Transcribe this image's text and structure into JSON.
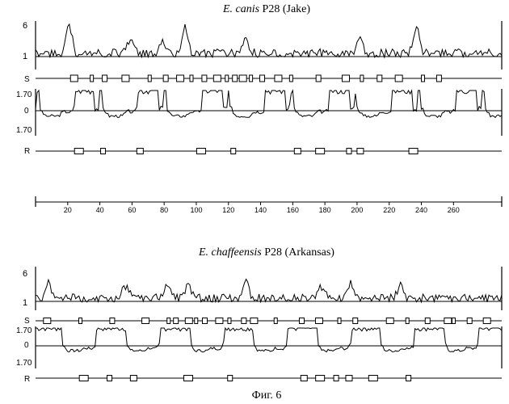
{
  "panels": [
    {
      "title_italic": "E. canis",
      "title_rest": " P28 (Jake)",
      "top_labels": [
        "6",
        "1"
      ],
      "s_label": "S",
      "hydro_labels": [
        "1.70",
        "0",
        "1.70"
      ],
      "r_label": "R"
    },
    {
      "title_italic": "E. chaffeensis",
      "title_rest": " P28 (Arkansas)",
      "top_labels": [
        "6",
        "1"
      ],
      "s_label": "S",
      "hydro_labels": [
        "1.70",
        "0",
        "1.70"
      ],
      "r_label": "R"
    }
  ],
  "axis": {
    "ticks": [
      "20",
      "40",
      "60",
      "80",
      "100",
      "120",
      "140",
      "160",
      "180",
      "200",
      "220",
      "240",
      "260"
    ]
  },
  "caption": "Фиг. 6",
  "track_data": {
    "panel1": {
      "r_boxes": [
        27,
        42,
        65,
        103,
        123,
        163,
        177,
        195,
        202,
        235
      ],
      "s_boxes": [
        24,
        35,
        43,
        56,
        71,
        81,
        90,
        97,
        105,
        113,
        119,
        124,
        129,
        134,
        141,
        151,
        159,
        176,
        193,
        203,
        214,
        226,
        241,
        251
      ],
      "peaks": [
        21,
        59,
        79,
        93,
        131,
        202,
        237
      ]
    },
    "panel2": {
      "r_boxes": [
        30,
        46,
        61,
        95,
        121,
        167,
        177,
        187,
        195,
        210,
        232
      ],
      "s_boxes": [
        8,
        31,
        53,
        76,
        92,
        97,
        106,
        111,
        117,
        127,
        134,
        144,
        151,
        166,
        184,
        196,
        210,
        221,
        245,
        257,
        271,
        285,
        289,
        300,
        312
      ],
      "peaks": [
        8,
        56,
        82,
        95,
        131,
        178,
        196,
        227
      ]
    }
  }
}
